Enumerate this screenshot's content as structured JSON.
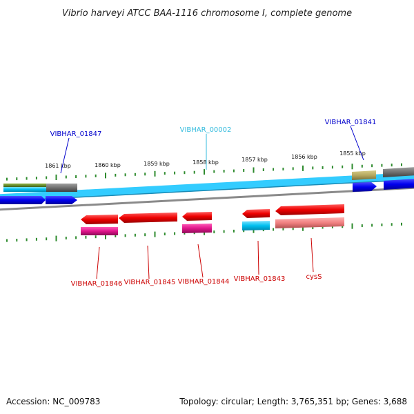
{
  "title": "Vibrio harveyi ATCC BAA-1116 chromosome I, complete genome",
  "footer": {
    "accession": "Accession: NC_009783",
    "summary": "Topology: circular; Length: 3,765,351 bp; Genes: 3,688"
  },
  "ruler": {
    "ticks": [
      "1861 kbp",
      "1860 kbp",
      "1859 kbp",
      "1858 kbp",
      "1857 kbp",
      "1856 kbp",
      "1855 kbp"
    ]
  },
  "colors": {
    "backbone_cyan": "#33ccff",
    "backbone_gray": "#8a8a8a",
    "tick_green": "#2e8b2e",
    "forward_gene": "#0000ee",
    "reverse_gene": "#ee0000",
    "rna_pink": "#e0158a",
    "cyan_gene": "#00c0f0",
    "salmon_gene": "#f08080",
    "olive_gene": "#b5a860",
    "gray_gene": "#707070",
    "label_blue": "#0000cc",
    "label_cyan": "#33bbdd",
    "label_red": "#cc0000"
  },
  "labels": {
    "top": [
      {
        "text": "VIBHAR_01847",
        "color": "#0000cc"
      },
      {
        "text": "VIBHAR_00002",
        "color": "#33bbdd"
      },
      {
        "text": "VIBHAR_01841",
        "color": "#0000cc"
      }
    ],
    "bottom": [
      {
        "text": "VIBHAR_01846",
        "color": "#cc0000"
      },
      {
        "text": "VIBHAR_01845",
        "color": "#cc0000"
      },
      {
        "text": "VIBHAR_01844",
        "color": "#cc0000"
      },
      {
        "text": "VIBHAR_01843",
        "color": "#cc0000"
      },
      {
        "text": "cysS",
        "color": "#cc0000"
      }
    ]
  }
}
